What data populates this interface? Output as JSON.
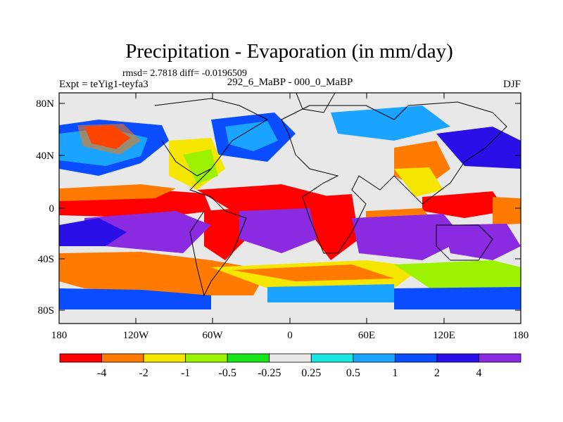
{
  "title": "Precipitation - Evaporation (in mm/day)",
  "stats": "rmsd= 2.7818 diff= -0.0196509",
  "left_label": "Expt = teYig1-teyfa3",
  "center_label": "292_6_MaBP - 000_0_MaBP",
  "right_label": "DJF",
  "lat_ticks": [
    "80N",
    "40N",
    "0",
    "40S",
    "80S"
  ],
  "lon_ticks": [
    "180",
    "120W",
    "60W",
    "0",
    "60E",
    "120E",
    "180"
  ],
  "colorbar": {
    "colors": [
      "#ff0000",
      "#ff7a00",
      "#f5e600",
      "#9cf200",
      "#19e619",
      "#e8e8e8",
      "#19e6e0",
      "#1aa3ff",
      "#0a4cff",
      "#2a10e6",
      "#8a2be2"
    ],
    "labels": [
      "-4",
      "-2",
      "-1",
      "-0.5",
      "-0.25",
      "0.25",
      "0.5",
      "1",
      "2",
      "4"
    ]
  },
  "chart_data": {
    "type": "heatmap",
    "title": "Precipitation - Evaporation (in mm/day)",
    "units": "mm/day",
    "season": "DJF",
    "experiment": "teYig1-teyfa3",
    "comparison": "292_6_MaBP - 000_0_MaBP",
    "rmsd": 2.7818,
    "diff": -0.0196509,
    "lat_range": [
      -90,
      90
    ],
    "lon_range": [
      -180,
      180
    ],
    "contour_levels": [
      -4,
      -2,
      -1,
      -0.5,
      -0.25,
      0.25,
      0.5,
      1,
      2,
      4
    ],
    "bands": [
      {
        "lat_range": [
          70,
          90
        ],
        "pattern": "mostly near-zero (-0.25 to 0.25)"
      },
      {
        "lat_range": [
          30,
          70
        ],
        "pattern": "mixed, positive (1 to 4) over oceans, near-zero over continents"
      },
      {
        "lat_range": [
          -10,
          20
        ],
        "pattern": "strongly negative (< -4) across central Pacific, Atlantic and Africa"
      },
      {
        "lat_range": [
          -35,
          -10
        ],
        "pattern": "strongly positive (> 4) over South Pacific, Indian Ocean and Atlantic"
      },
      {
        "lat_range": [
          -60,
          -35
        ],
        "pattern": "negative (-1 to -4) over southern oceans"
      },
      {
        "lat_range": [
          -90,
          -60
        ],
        "pattern": "positive (0.5 to 2) near Antarctica"
      }
    ]
  }
}
